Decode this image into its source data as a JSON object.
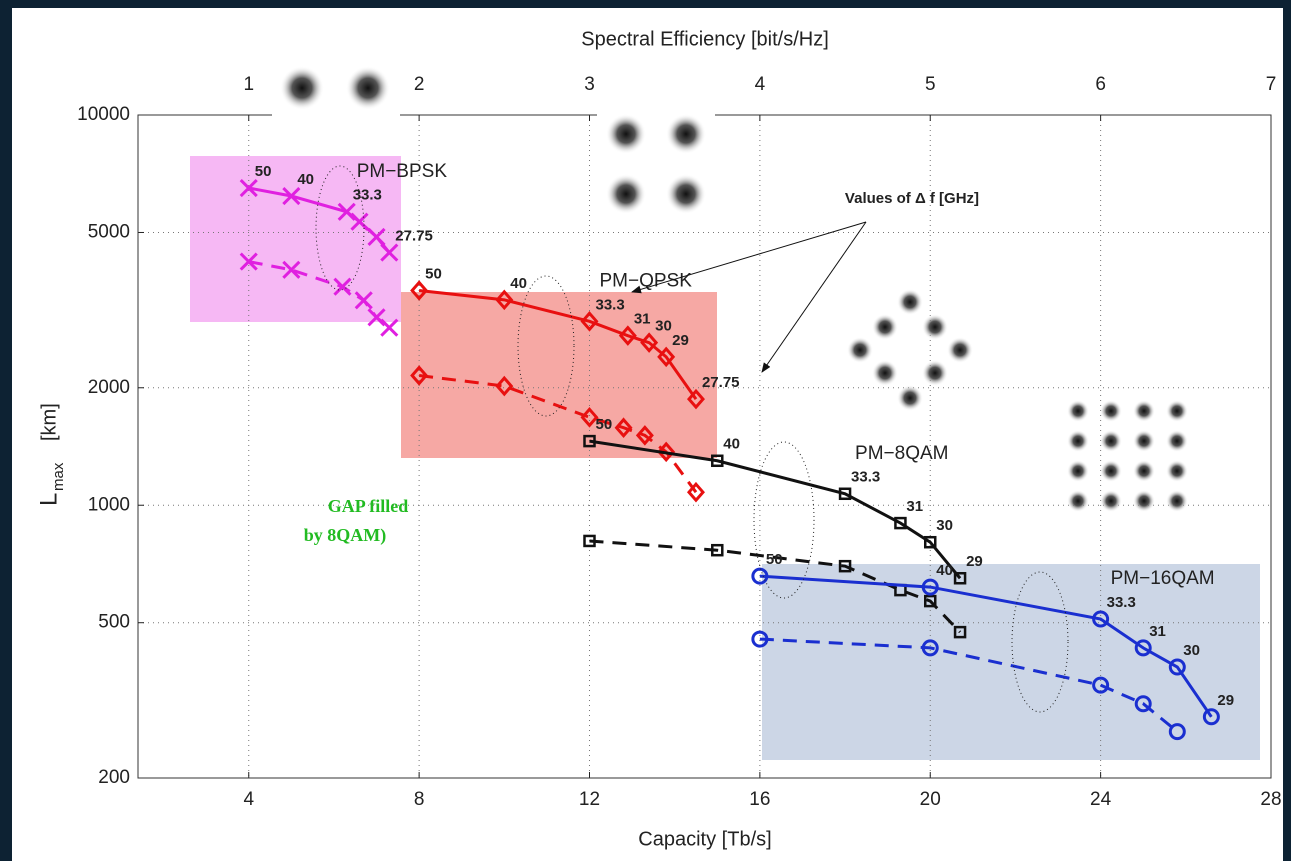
{
  "chart_data": {
    "type": "line",
    "x2label": "Spectral Efficiency [bit/s/Hz]",
    "xlabel": "Capacity  [Tb/s]",
    "ylabel": {
      "main": "L",
      "sub": "max",
      "unit": "[km]"
    },
    "xlim": [
      1.4,
      28
    ],
    "xticks": [
      4,
      8,
      12,
      16,
      20,
      24,
      28
    ],
    "x2lim": [
      0.35,
      7
    ],
    "x2ticks": [
      1,
      2,
      3,
      4,
      5,
      6,
      7
    ],
    "ylim": [
      200,
      10000
    ],
    "yticks": [
      200,
      500,
      1000,
      2000,
      5000,
      10000
    ],
    "ylog": true,
    "grid": true,
    "series": [
      {
        "name": "PM−BPSK",
        "color": "#e020e0",
        "marker": "x",
        "dashed": false,
        "x": [
          4,
          5,
          6.3,
          6.6,
          7,
          7.3
        ],
        "values": [
          6500,
          6200,
          5650,
          5330,
          4870,
          4440
        ],
        "labels": [
          "50",
          "40",
          "33.3",
          null,
          null,
          "27.75"
        ]
      },
      {
        "color": "#e020e0",
        "marker": "x",
        "dashed": true,
        "x": [
          4,
          5,
          6.2,
          6.7,
          7,
          7.3
        ],
        "values": [
          4210,
          4010,
          3630,
          3350,
          3030,
          2850
        ]
      },
      {
        "name": "PM−QPSK",
        "color": "#e81010",
        "marker": "diamond",
        "dashed": false,
        "x": [
          8,
          10,
          12,
          12.9,
          13.4,
          13.8,
          14.5
        ],
        "values": [
          3550,
          3360,
          2960,
          2720,
          2610,
          2400,
          1870
        ],
        "labels": [
          "50",
          "40",
          "33.3",
          "31",
          "30",
          "29",
          "27.75"
        ]
      },
      {
        "color": "#e81010",
        "marker": "diamond",
        "dashed": true,
        "x": [
          8,
          10,
          12,
          12.8,
          13.3,
          13.8,
          14.5
        ],
        "values": [
          2150,
          2020,
          1680,
          1580,
          1510,
          1370,
          1080
        ]
      },
      {
        "name": "PM−8QAM",
        "color": "#111111",
        "marker": "square",
        "dashed": false,
        "x": [
          12,
          15,
          18,
          19.3,
          20,
          20.7
        ],
        "values": [
          1460,
          1300,
          1070,
          900,
          804,
          650
        ],
        "labels": [
          "50",
          "40",
          "33.3",
          "31",
          "30",
          "29"
        ]
      },
      {
        "color": "#111111",
        "marker": "square",
        "dashed": true,
        "x": [
          12,
          15,
          18,
          19.3,
          20,
          20.7
        ],
        "values": [
          810,
          767,
          698,
          606,
          568,
          473
        ]
      },
      {
        "name": "PM−16QAM",
        "color": "#1a2fd0",
        "marker": "circle",
        "dashed": false,
        "x": [
          16,
          20,
          24,
          25,
          25.8,
          26.6
        ],
        "values": [
          658,
          617,
          511,
          431,
          385,
          287
        ],
        "labels": [
          "50",
          "40",
          "33.3",
          "31",
          "30",
          "29"
        ]
      },
      {
        "color": "#1a2fd0",
        "marker": "circle",
        "dashed": true,
        "x": [
          16,
          20,
          24,
          25,
          25.8
        ],
        "values": [
          454,
          431,
          346,
          310,
          263
        ]
      }
    ],
    "annotations": {
      "delta_f": "Values of Δ f [GHz]",
      "gap_line1": "GAP  filled",
      "gap_line2": "by 8QAM)"
    }
  }
}
